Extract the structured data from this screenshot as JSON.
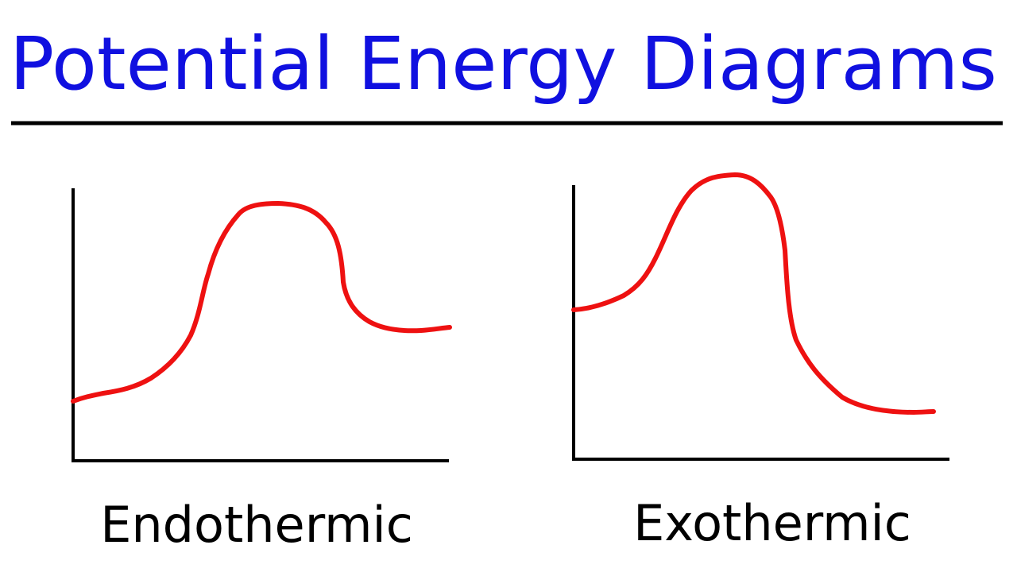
{
  "title": "Potential Energy Diagrams",
  "diagrams": [
    {
      "label": "Endothermic"
    },
    {
      "label": "Exothermic"
    }
  ]
}
